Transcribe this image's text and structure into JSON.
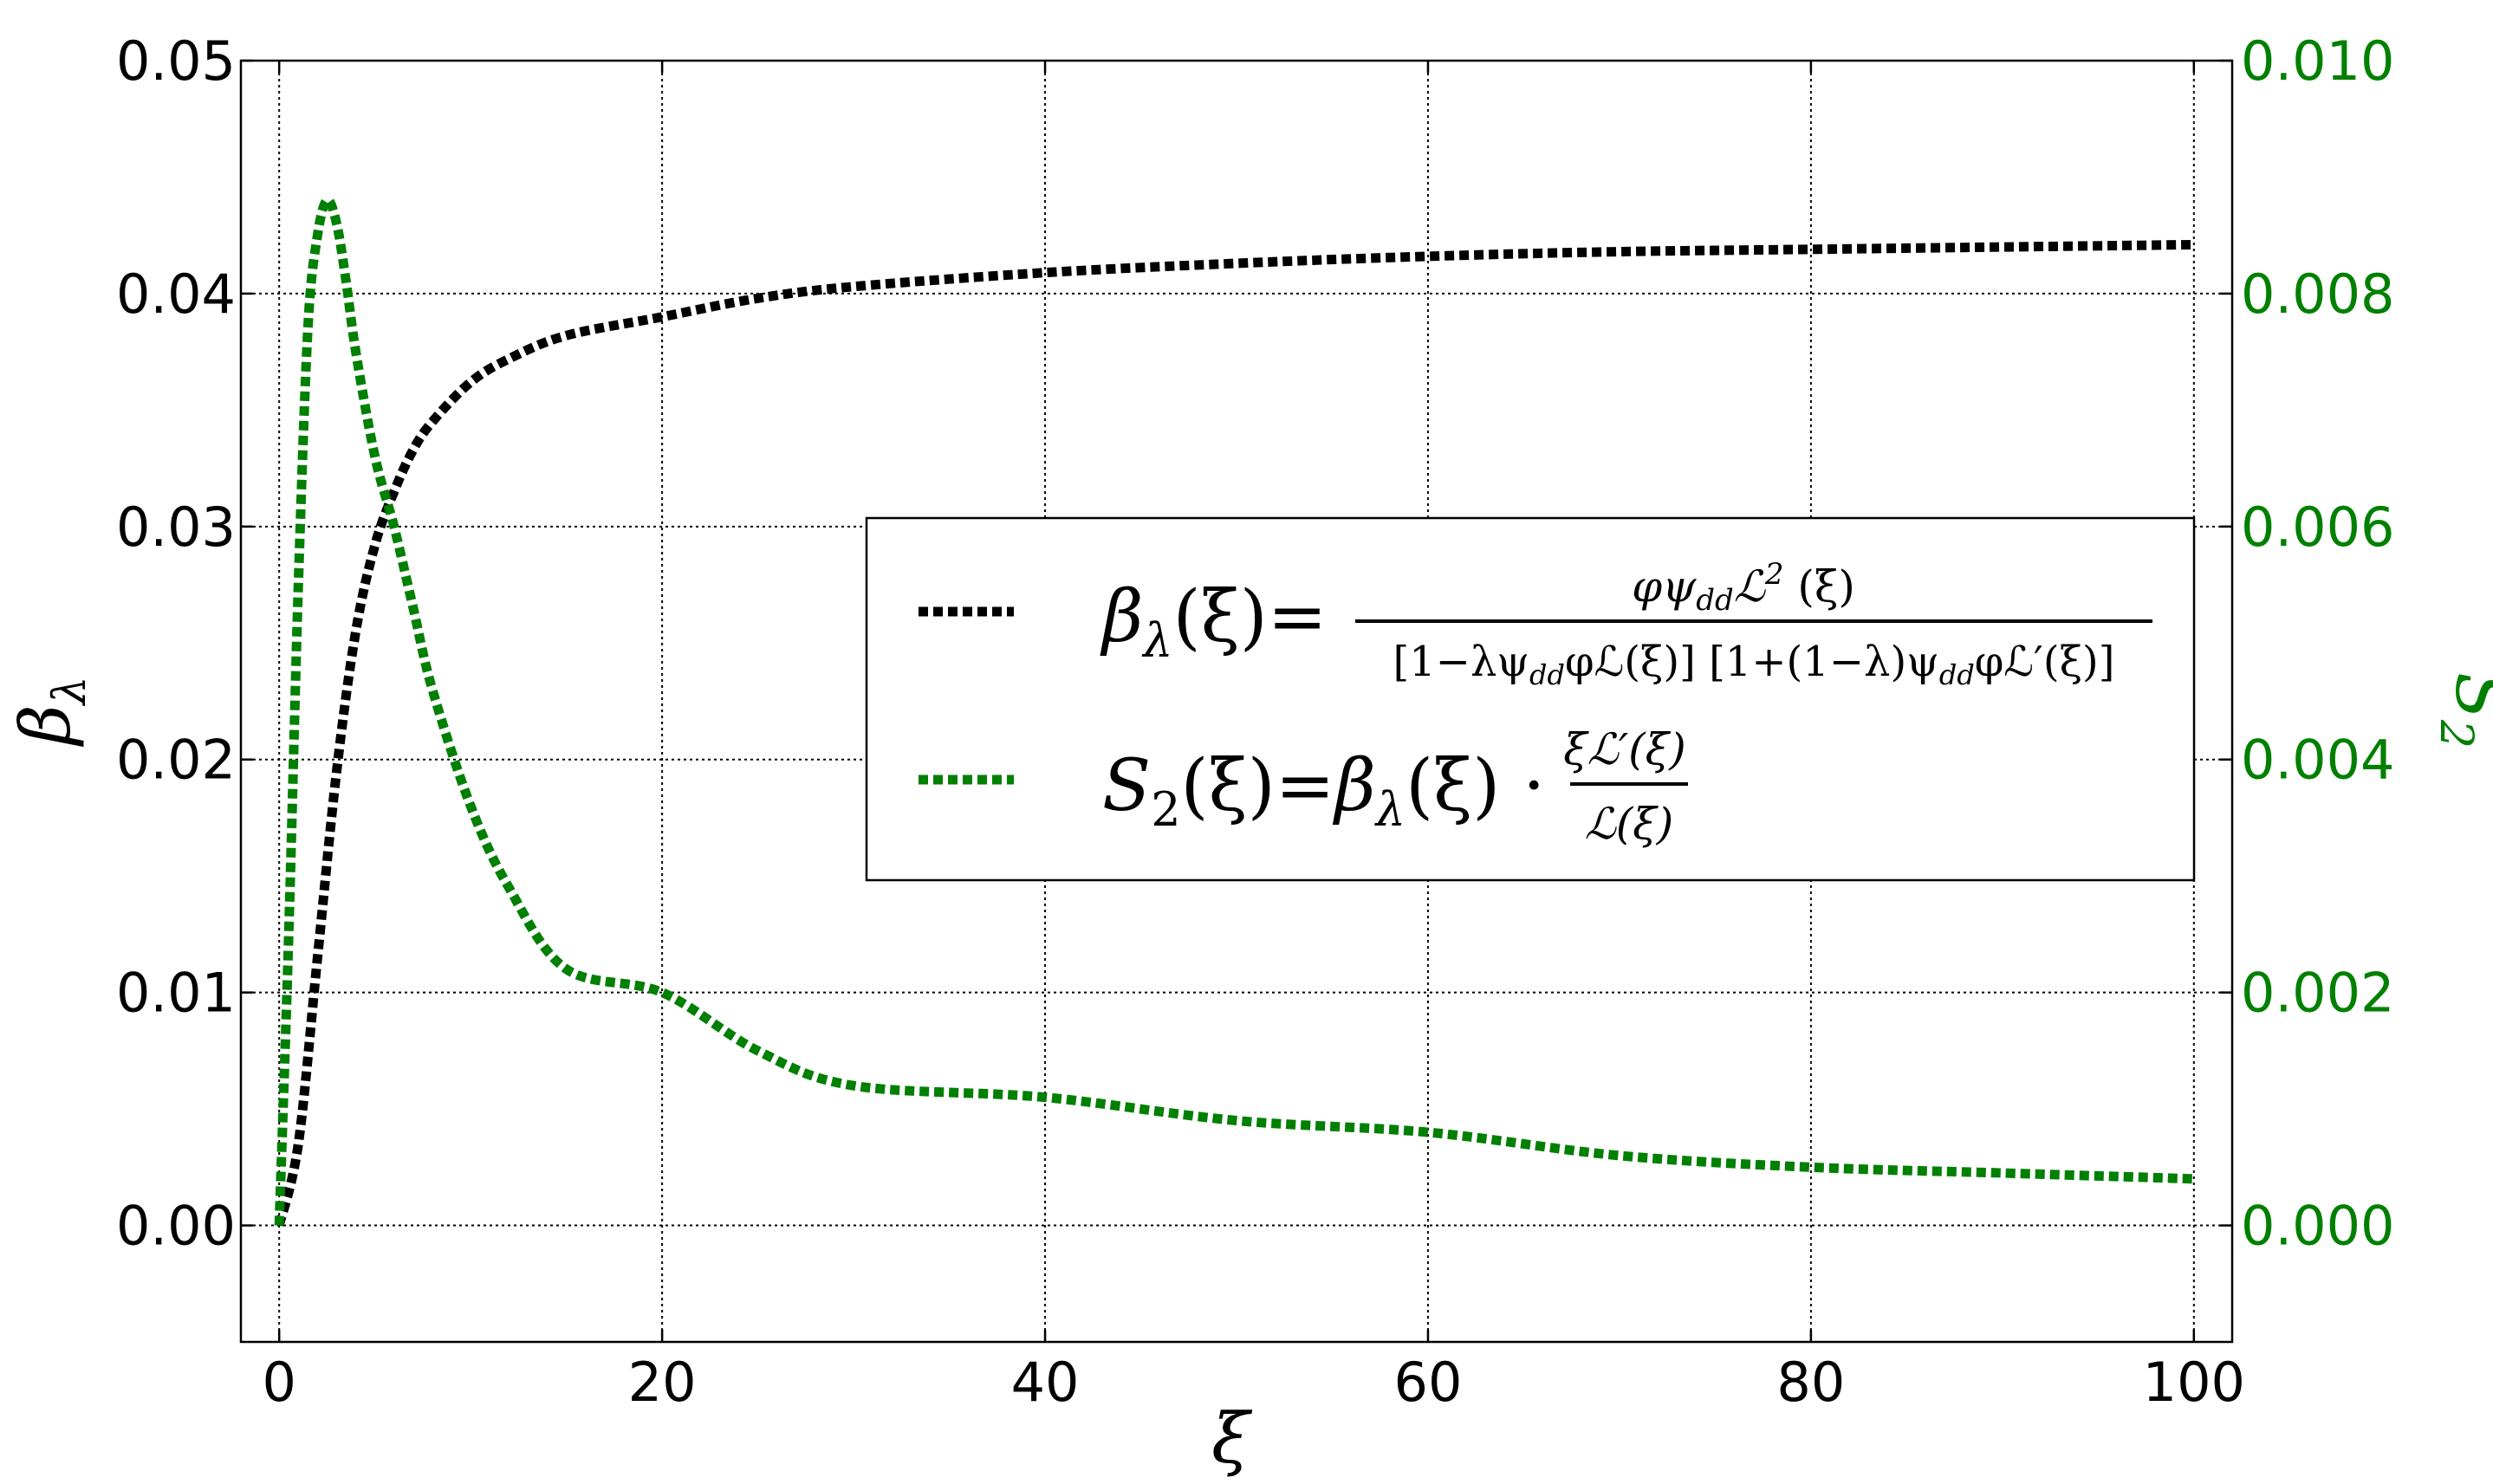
{
  "colors": {
    "beta": "#000000",
    "s2": "#008000",
    "grid": "#000000",
    "background": "#ffffff"
  },
  "chart_data": {
    "type": "line",
    "title": "",
    "grid": true,
    "legend_position": "center-right",
    "x_axis": {
      "label": "ξ",
      "range": [
        -2,
        102
      ],
      "ticks": [
        0,
        20,
        40,
        60,
        80,
        100
      ],
      "tick_labels": [
        "0",
        "20",
        "40",
        "60",
        "80",
        "100"
      ]
    },
    "y_left": {
      "label_main": "β",
      "label_sub": "λ",
      "range": [
        -0.005,
        0.05
      ],
      "ticks": [
        0.0,
        0.01,
        0.02,
        0.03,
        0.04,
        0.05
      ],
      "tick_labels": [
        "0.00",
        "0.01",
        "0.02",
        "0.03",
        "0.04",
        "0.05"
      ]
    },
    "y_right": {
      "label_main": "S",
      "label_sub": "2",
      "range": [
        -0.001,
        0.01
      ],
      "ticks": [
        0.0,
        0.002,
        0.004,
        0.006,
        0.008,
        0.01
      ],
      "tick_labels": [
        "0.000",
        "0.002",
        "0.004",
        "0.006",
        "0.008",
        "0.010"
      ]
    },
    "series": [
      {
        "name": "β_λ(ξ) = φψ_dd L²(ξ) / [1−λψ_dd φL(ξ)][1+(1−λ)ψ_dd φL′(ξ)]",
        "axis": "left",
        "x": [
          0,
          1,
          2,
          3,
          4,
          5,
          6,
          7,
          8,
          10,
          12,
          15,
          20,
          25,
          30,
          40,
          50,
          60,
          70,
          80,
          90,
          100
        ],
        "y": [
          0.0,
          0.0035,
          0.0115,
          0.0195,
          0.0255,
          0.0292,
          0.0315,
          0.0333,
          0.0345,
          0.0362,
          0.0372,
          0.0382,
          0.039,
          0.0398,
          0.0403,
          0.0409,
          0.0413,
          0.0416,
          0.0418,
          0.0419,
          0.042,
          0.0421
        ]
      },
      {
        "name": "S₂(ξ) = β_λ(ξ) · ξL′(ξ)/L(ξ)",
        "axis": "right",
        "x": [
          0,
          0.5,
          1,
          1.5,
          2,
          2.5,
          3,
          3.5,
          4,
          5,
          6,
          7,
          8,
          10,
          12,
          15,
          20,
          25,
          30,
          40,
          50,
          60,
          70,
          80,
          90,
          100
        ],
        "y": [
          0.0,
          0.0025,
          0.0055,
          0.0077,
          0.0085,
          0.0088,
          0.0086,
          0.0081,
          0.0075,
          0.0066,
          0.006,
          0.0053,
          0.0046,
          0.0036,
          0.0029,
          0.0022,
          0.002,
          0.0015,
          0.0012,
          0.0011,
          0.0009,
          0.0008,
          0.0006,
          0.0005,
          0.00045,
          0.0004
        ]
      }
    ],
    "legend": {
      "items": [
        {
          "series": "beta",
          "lhs_main": "β",
          "lhs_sub": "λ",
          "lhs_arg": "(ξ)",
          "equals": "=",
          "numerator": "φψ",
          "numerator_sub": "dd",
          "numerator_rest": "ℒ",
          "numerator_sup": "2",
          "numerator_tail": " (ξ)",
          "denominator": "[1−λψ_ddφℒ(ξ)] [1+(1−λ)ψ_ddφℒ′(ξ)]",
          "den_part1": "[1−λψ",
          "den_sub1": "dd",
          "den_part2": "φℒ(ξ)] [1+(1−λ)ψ",
          "den_sub2": "dd",
          "den_part3": "φℒ′(ξ)]"
        },
        {
          "series": "s2",
          "lhs_main": "S",
          "lhs_sub": "2",
          "lhs_arg": "(ξ)",
          "equals": "=",
          "rhs_main": "β",
          "rhs_sub": "λ",
          "rhs_arg": "(ξ) ·",
          "numerator": "ξℒ′(ξ)",
          "denominator": "ℒ(ξ)"
        }
      ]
    }
  }
}
